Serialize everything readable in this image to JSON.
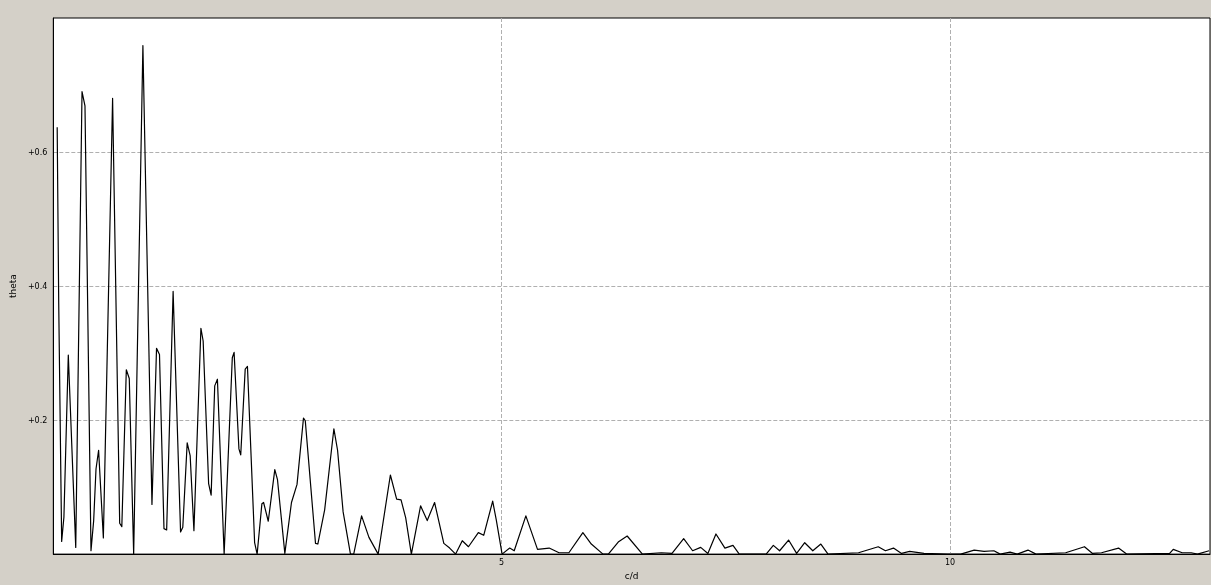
{
  "chart_data": {
    "type": "line",
    "xlabel": "c/d",
    "ylabel": "theta",
    "xlim": [
      0,
      12.9
    ],
    "ylim": [
      0,
      0.8
    ],
    "xticks": [
      5,
      10
    ],
    "yticks": [
      {
        "value": 0.2,
        "label": "+0.2"
      },
      {
        "value": 0.4,
        "label": "+0.4"
      },
      {
        "value": 0.6,
        "label": "+0.6"
      }
    ],
    "grid": true,
    "marker": "none",
    "line_style": "solid",
    "series": [
      {
        "color": "#000000",
        "x": [
          0.043,
          0.06,
          0.093,
          0.118,
          0.167,
          0.25,
          0.32,
          0.353,
          0.42,
          0.45,
          0.476,
          0.505,
          0.558,
          0.661,
          0.74,
          0.764,
          0.814,
          0.847,
          0.896,
          0.999,
          1.1,
          1.151,
          1.184,
          1.234,
          1.264,
          1.336,
          1.419,
          1.444,
          1.493,
          1.526,
          1.568,
          1.646,
          1.671,
          1.732,
          1.76,
          1.8,
          1.83,
          1.905,
          1.996,
          2.016,
          2.07,
          2.09,
          2.14,
          2.165,
          2.245,
          2.273,
          2.326,
          2.345,
          2.397,
          2.47,
          2.5,
          2.582,
          2.656,
          2.718,
          2.79,
          2.81,
          2.924,
          2.95,
          3.026,
          3.129,
          3.17,
          3.232,
          3.314,
          3.35,
          3.438,
          3.52,
          3.623,
          3.759,
          3.829,
          3.878,
          3.93,
          3.993,
          4.096,
          4.17,
          4.252,
          4.355,
          4.42,
          4.487,
          4.561,
          4.63,
          4.74,
          4.8,
          4.9,
          4.94,
          5.005,
          5.09,
          5.14,
          5.27,
          5.4,
          5.53,
          5.64,
          5.75,
          5.906,
          6.0,
          6.13,
          6.19,
          6.3,
          6.4,
          6.57,
          6.78,
          6.9,
          7.03,
          7.13,
          7.22,
          7.3,
          7.39,
          7.49,
          7.58,
          7.65,
          7.95,
          8.03,
          8.1,
          8.2,
          8.29,
          8.38,
          8.47,
          8.56,
          8.64,
          8.98,
          9.2,
          9.28,
          9.37,
          9.46,
          9.55,
          9.71,
          9.97,
          10.12,
          10.27,
          10.38,
          10.49,
          10.56,
          10.67,
          10.75,
          10.87,
          10.96,
          11.29,
          11.5,
          11.59,
          11.69,
          11.88,
          11.97,
          12.45,
          12.49,
          12.59,
          12.69,
          12.76,
          12.89
        ],
        "values": [
          0.637,
          0.376,
          0.019,
          0.055,
          0.297,
          0.01,
          0.69,
          0.669,
          0.005,
          0.05,
          0.127,
          0.155,
          0.024,
          0.68,
          0.046,
          0.041,
          0.275,
          0.262,
          0,
          0.759,
          0.074,
          0.307,
          0.298,
          0.038,
          0.036,
          0.392,
          0.033,
          0.04,
          0.166,
          0.147,
          0.035,
          0.337,
          0.318,
          0.105,
          0.088,
          0.251,
          0.261,
          0,
          0.293,
          0.301,
          0.157,
          0.148,
          0.276,
          0.28,
          0.017,
          0,
          0.075,
          0.077,
          0.049,
          0.126,
          0.111,
          0.001,
          0.077,
          0.104,
          0.203,
          0.199,
          0.016,
          0.015,
          0.066,
          0.187,
          0.155,
          0.063,
          0,
          0,
          0.057,
          0.025,
          0,
          0.118,
          0.082,
          0.081,
          0.054,
          0,
          0.072,
          0.05,
          0.077,
          0.016,
          0.009,
          0,
          0.02,
          0.011,
          0.032,
          0.028,
          0.079,
          0.051,
          0,
          0.009,
          0.005,
          0.057,
          0.007,
          0.009,
          0.002,
          0.002,
          0.032,
          0.015,
          0,
          0,
          0.018,
          0.027,
          0,
          0.002,
          0.001,
          0.023,
          0.005,
          0.01,
          0.001,
          0.03,
          0.009,
          0.013,
          0,
          0,
          0.013,
          0.005,
          0.021,
          0.001,
          0.017,
          0.005,
          0.015,
          0,
          0.002,
          0.011,
          0.005,
          0.009,
          0.001,
          0.004,
          0.001,
          0,
          0,
          0.006,
          0.004,
          0.005,
          0,
          0.003,
          0,
          0.006,
          0,
          0.002,
          0.011,
          0.001,
          0.002,
          0.009,
          0,
          0.001,
          0.007,
          0.002,
          0.002,
          0,
          0.005
        ]
      }
    ]
  }
}
